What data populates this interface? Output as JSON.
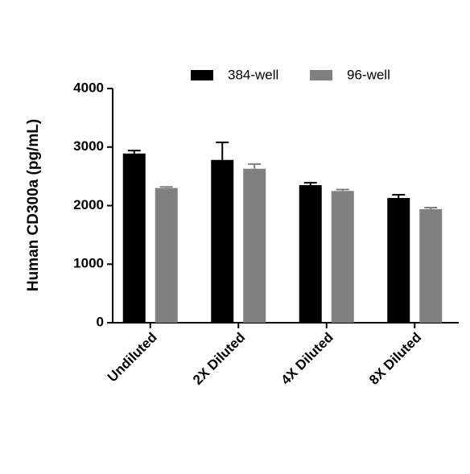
{
  "chart_data": {
    "type": "bar",
    "y_label": "Human CD300a (pg/mL)",
    "categories": [
      "Undiluted",
      "2X Diluted",
      "4X Diluted",
      "8X Diluted"
    ],
    "series": [
      {
        "name": "384-well",
        "color": "#000000",
        "values": [
          2890,
          2780,
          2350,
          2130
        ],
        "errors": [
          50,
          300,
          40,
          55
        ]
      },
      {
        "name": "96-well",
        "color": "#808080",
        "values": [
          2300,
          2630,
          2250,
          1940
        ],
        "errors": [
          20,
          80,
          25,
          25
        ]
      }
    ],
    "ylim": [
      0,
      4000
    ],
    "yticks": [
      0,
      1000,
      2000,
      3000,
      4000
    ],
    "grid": false,
    "legend": "top"
  }
}
